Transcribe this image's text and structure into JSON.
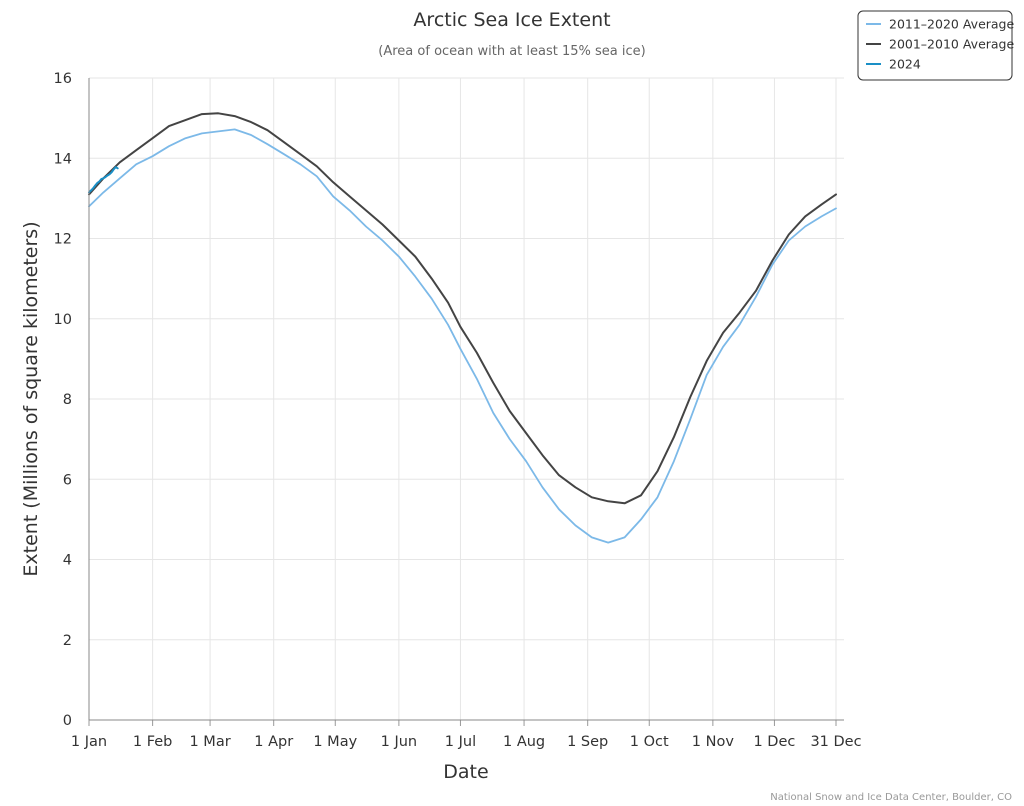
{
  "chart_data": {
    "type": "line",
    "title": "Arctic Sea Ice Extent",
    "subtitle": "(Area of ocean with at least 15% sea ice)",
    "xlabel": "Date",
    "ylabel": "Extent (Millions of square kilometers)",
    "x_unit": "day of year",
    "xlim": [
      1,
      365
    ],
    "ylim": [
      0,
      16
    ],
    "y_ticks": [
      0,
      2,
      4,
      6,
      8,
      10,
      12,
      14,
      16
    ],
    "x_ticks": [
      {
        "day": 1,
        "label": "1 Jan"
      },
      {
        "day": 32,
        "label": "1 Feb"
      },
      {
        "day": 60,
        "label": "1 Mar"
      },
      {
        "day": 91,
        "label": "1 Apr"
      },
      {
        "day": 121,
        "label": "1 May"
      },
      {
        "day": 152,
        "label": "1 Jun"
      },
      {
        "day": 182,
        "label": "1 Jul"
      },
      {
        "day": 213,
        "label": "1 Aug"
      },
      {
        "day": 244,
        "label": "1 Sep"
      },
      {
        "day": 274,
        "label": "1 Oct"
      },
      {
        "day": 305,
        "label": "1 Nov"
      },
      {
        "day": 335,
        "label": "1 Dec"
      },
      {
        "day": 365,
        "label": "31 Dec"
      }
    ],
    "grid": true,
    "legend_position": "top-right",
    "credit": "National Snow and Ice Data Center, Boulder, CO",
    "series": [
      {
        "name": "2011–2020 Average",
        "color": "#7cb9e8",
        "x": [
          1,
          8,
          16,
          24,
          32,
          40,
          48,
          56,
          64,
          72,
          80,
          88,
          96,
          104,
          112,
          120,
          128,
          136,
          144,
          152,
          160,
          168,
          176,
          182,
          190,
          198,
          206,
          214,
          222,
          230,
          238,
          246,
          254,
          262,
          270,
          278,
          286,
          294,
          302,
          310,
          318,
          326,
          334,
          342,
          350,
          358,
          365
        ],
        "y": [
          12.8,
          13.15,
          13.5,
          13.85,
          14.05,
          14.3,
          14.5,
          14.62,
          14.67,
          14.72,
          14.58,
          14.35,
          14.1,
          13.85,
          13.55,
          13.05,
          12.7,
          12.3,
          11.95,
          11.55,
          11.05,
          10.5,
          9.85,
          9.25,
          8.5,
          7.65,
          7.0,
          6.45,
          5.8,
          5.25,
          4.85,
          4.55,
          4.42,
          4.55,
          5.0,
          5.55,
          6.45,
          7.5,
          8.6,
          9.3,
          9.85,
          10.55,
          11.35,
          11.95,
          12.3,
          12.55,
          12.75
        ]
      },
      {
        "name": "2001–2010 Average",
        "color": "#444444",
        "x": [
          1,
          8,
          16,
          24,
          32,
          40,
          48,
          56,
          64,
          72,
          80,
          88,
          96,
          104,
          112,
          120,
          128,
          136,
          144,
          152,
          160,
          168,
          176,
          182,
          190,
          198,
          206,
          214,
          222,
          230,
          238,
          246,
          254,
          262,
          270,
          278,
          286,
          294,
          302,
          310,
          318,
          326,
          334,
          342,
          350,
          358,
          365
        ],
        "y": [
          13.1,
          13.5,
          13.9,
          14.2,
          14.5,
          14.8,
          14.95,
          15.1,
          15.12,
          15.05,
          14.9,
          14.7,
          14.4,
          14.1,
          13.8,
          13.4,
          13.05,
          12.7,
          12.35,
          11.95,
          11.55,
          11.0,
          10.4,
          9.8,
          9.15,
          8.4,
          7.7,
          7.15,
          6.6,
          6.1,
          5.8,
          5.55,
          5.45,
          5.4,
          5.6,
          6.2,
          7.05,
          8.05,
          8.95,
          9.65,
          10.15,
          10.7,
          11.45,
          12.1,
          12.55,
          12.85,
          13.1
        ]
      },
      {
        "name": "2024",
        "color": "#1a8fc6",
        "x": [
          1,
          2,
          3,
          4,
          5,
          6,
          7,
          8,
          9,
          10,
          11,
          12,
          13,
          14,
          15
        ],
        "y": [
          13.15,
          13.2,
          13.25,
          13.32,
          13.38,
          13.42,
          13.48,
          13.5,
          13.53,
          13.57,
          13.6,
          13.65,
          13.72,
          13.78,
          13.75
        ]
      }
    ]
  }
}
